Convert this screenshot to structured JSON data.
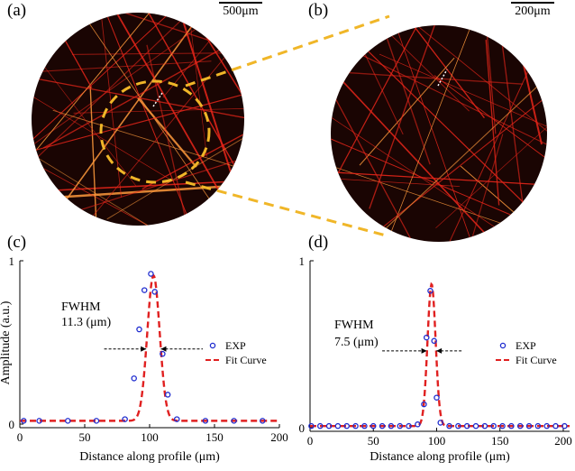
{
  "panels": {
    "a": {
      "label": "(a)",
      "scale_label": "500μm"
    },
    "b": {
      "label": "(b)",
      "scale_label": "200μm"
    },
    "c": {
      "label": "(c)"
    },
    "d": {
      "label": "(d)"
    }
  },
  "colors": {
    "microscope_bg": "#1a0503",
    "fiber": "#e8261a",
    "fiber_bright": "#ff9a3c",
    "zoom_dash": "#f0b628",
    "exp_marker": "#1f2ccf",
    "fit_curve": "#e02020",
    "fwhm_arrow": "#000000"
  },
  "chart_data": [
    {
      "type": "scatter",
      "panel": "(c)",
      "title": "",
      "xlabel": "Distance along profile (μm)",
      "ylabel": "Amplitude (a.u.)",
      "xlim": [
        0,
        200
      ],
      "ylim": [
        0,
        1
      ],
      "xticks": [
        0,
        50,
        100,
        150,
        200
      ],
      "yticks": [
        0,
        1
      ],
      "annotation": {
        "line1": "FWHM",
        "line2": "11.3 (μm)"
      },
      "fwhm": {
        "center": 103,
        "width": 11.3,
        "level": 0.46,
        "arrow_span": [
          65,
          141
        ]
      },
      "legend": {
        "position": "right",
        "entries": [
          "EXP",
          "Fit Curve"
        ]
      },
      "series": [
        {
          "name": "EXP",
          "kind": "markers",
          "x": [
            3,
            15,
            37,
            59,
            81,
            88,
            92,
            96,
            101,
            104,
            110,
            114,
            121,
            143,
            165,
            187
          ],
          "y": [
            0.02,
            0.02,
            0.02,
            0.02,
            0.03,
            0.28,
            0.58,
            0.82,
            0.92,
            0.81,
            0.43,
            0.18,
            0.03,
            0.02,
            0.02,
            0.02
          ]
        },
        {
          "name": "Fit Curve",
          "kind": "gaussian",
          "center": 103,
          "fwhm": 11.3,
          "amplitude": 0.89,
          "baseline": 0.02
        }
      ]
    },
    {
      "type": "scatter",
      "panel": "(d)",
      "title": "",
      "xlabel": "Distance along profile (μm)",
      "ylabel": "",
      "xlim": [
        0,
        205
      ],
      "ylim": [
        0,
        1
      ],
      "xticks": [
        0,
        50,
        100,
        150,
        200
      ],
      "yticks": [
        0,
        1
      ],
      "annotation": {
        "line1": "FWHM",
        "line2": "7.5 (μm)"
      },
      "fwhm": {
        "center": 96,
        "width": 7.5,
        "level": 0.46,
        "arrow_span": [
          57,
          121
        ]
      },
      "legend": {
        "position": "right",
        "entries": [
          "EXP",
          "Fit Curve"
        ]
      },
      "series": [
        {
          "name": "EXP",
          "kind": "markers",
          "x": [
            1,
            8,
            15,
            22,
            29,
            36,
            43,
            50,
            57,
            64,
            71,
            78,
            85,
            90,
            92,
            95,
            98,
            100,
            103,
            110,
            117,
            124,
            131,
            138,
            145,
            152,
            159,
            166,
            173,
            180,
            187,
            194,
            201
          ],
          "y": [
            0.01,
            0.01,
            0.01,
            0.01,
            0.01,
            0.01,
            0.01,
            0.01,
            0.01,
            0.01,
            0.01,
            0.01,
            0.02,
            0.14,
            0.54,
            0.82,
            0.52,
            0.18,
            0.03,
            0.01,
            0.01,
            0.01,
            0.01,
            0.01,
            0.01,
            0.01,
            0.01,
            0.01,
            0.01,
            0.01,
            0.01,
            0.01,
            0.01
          ]
        },
        {
          "name": "Fit Curve",
          "kind": "gaussian",
          "center": 96,
          "fwhm": 7.5,
          "amplitude": 0.85,
          "baseline": 0.01
        }
      ]
    }
  ]
}
